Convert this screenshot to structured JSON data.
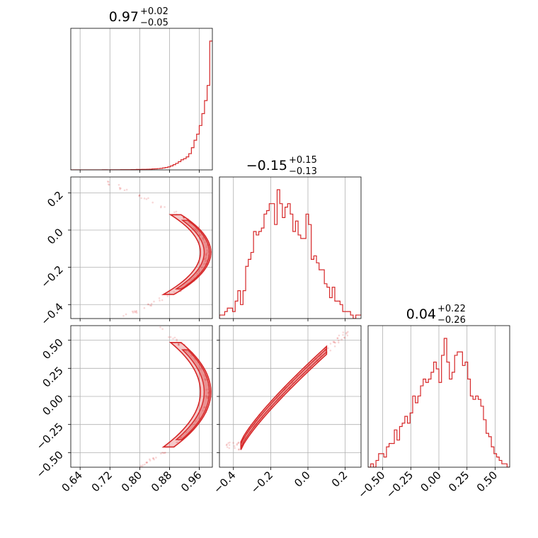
{
  "chart_data": {
    "type": "corner",
    "color": "#d62728",
    "grid": true,
    "parameters": [
      {
        "index": 0,
        "median": "0.97",
        "plus": "+0.02",
        "minus": "−0.05",
        "range": [
          0.615,
          0.995
        ],
        "ticks": [
          0.64,
          0.72,
          0.8,
          0.88,
          0.96
        ],
        "tick_labels": [
          "0.64",
          "0.72",
          "0.80",
          "0.88",
          "0.96"
        ]
      },
      {
        "index": 1,
        "median": "−0.15",
        "plus": "+0.15",
        "minus": "−0.13",
        "range": [
          -0.475,
          0.285
        ],
        "ticks": [
          -0.4,
          -0.2,
          0.0,
          0.2
        ],
        "tick_labels": [
          "−0.4",
          "−0.2",
          "0.0",
          "0.2"
        ]
      },
      {
        "index": 2,
        "median": "0.04",
        "plus": "+0.22",
        "minus": "−0.26",
        "range": [
          -0.63,
          0.63
        ],
        "ticks": [
          -0.5,
          -0.25,
          0.0,
          0.25,
          0.5
        ],
        "tick_labels": [
          "−0.50",
          "−0.25",
          "0.00",
          "0.25",
          "0.50"
        ]
      }
    ],
    "histograms": [
      {
        "param": 0,
        "bin_edges": [
          0.615,
          0.995
        ],
        "counts": [
          0,
          0,
          0,
          0,
          0,
          0,
          0,
          0,
          0,
          0,
          0,
          0,
          1,
          1,
          0,
          1,
          1,
          1,
          1,
          2,
          2,
          2,
          2,
          3,
          3,
          4,
          4,
          5,
          5,
          6,
          7,
          9,
          10,
          12,
          14,
          18,
          22,
          28,
          37,
          48,
          61,
          76,
          93,
          104,
          120,
          150,
          205,
          274,
          330,
          410,
          520,
          640,
          780,
          1190
        ]
      },
      {
        "param": 1,
        "bin_edges": [
          -0.475,
          0.285
        ],
        "counts": [
          1,
          1,
          2,
          3,
          3,
          2,
          5,
          8,
          4,
          8,
          15,
          17,
          19,
          25,
          24,
          25,
          26,
          30,
          31,
          33,
          33,
          27,
          37,
          33,
          29,
          32,
          33,
          30,
          25,
          28,
          24,
          23,
          23,
          30,
          27,
          17,
          18,
          16,
          14,
          14,
          10,
          9,
          6,
          9,
          5,
          5,
          4,
          2,
          2,
          2,
          1,
          0,
          1,
          1
        ]
      },
      {
        "param": 2,
        "bin_edges": [
          -0.63,
          0.63
        ],
        "counts": [
          0,
          1,
          0,
          2,
          4,
          4,
          3,
          6,
          7,
          7,
          11,
          8,
          12,
          13,
          15,
          13,
          16,
          21,
          19,
          21,
          24,
          26,
          25,
          26,
          28,
          31,
          29,
          25,
          33,
          38,
          31,
          26,
          28,
          33,
          34,
          34,
          30,
          31,
          26,
          21,
          20,
          21,
          20,
          18,
          14,
          10,
          9,
          6,
          4,
          3,
          2,
          1,
          1,
          0
        ]
      }
    ],
    "pairs": [
      {
        "x_param": 0,
        "y_param": 1,
        "shape": "crescent",
        "x_vertex": 0.985,
        "y_center": -0.12,
        "y_spread": 0.23
      },
      {
        "x_param": 0,
        "y_param": 2,
        "shape": "crescent",
        "x_vertex": 0.985,
        "y_center": 0.04,
        "y_spread": 0.5
      },
      {
        "x_param": 1,
        "y_param": 2,
        "shape": "diagonal-band",
        "x_start": -0.36,
        "x_end": 0.1,
        "y_start": -0.44,
        "y_end": 0.41
      }
    ]
  }
}
